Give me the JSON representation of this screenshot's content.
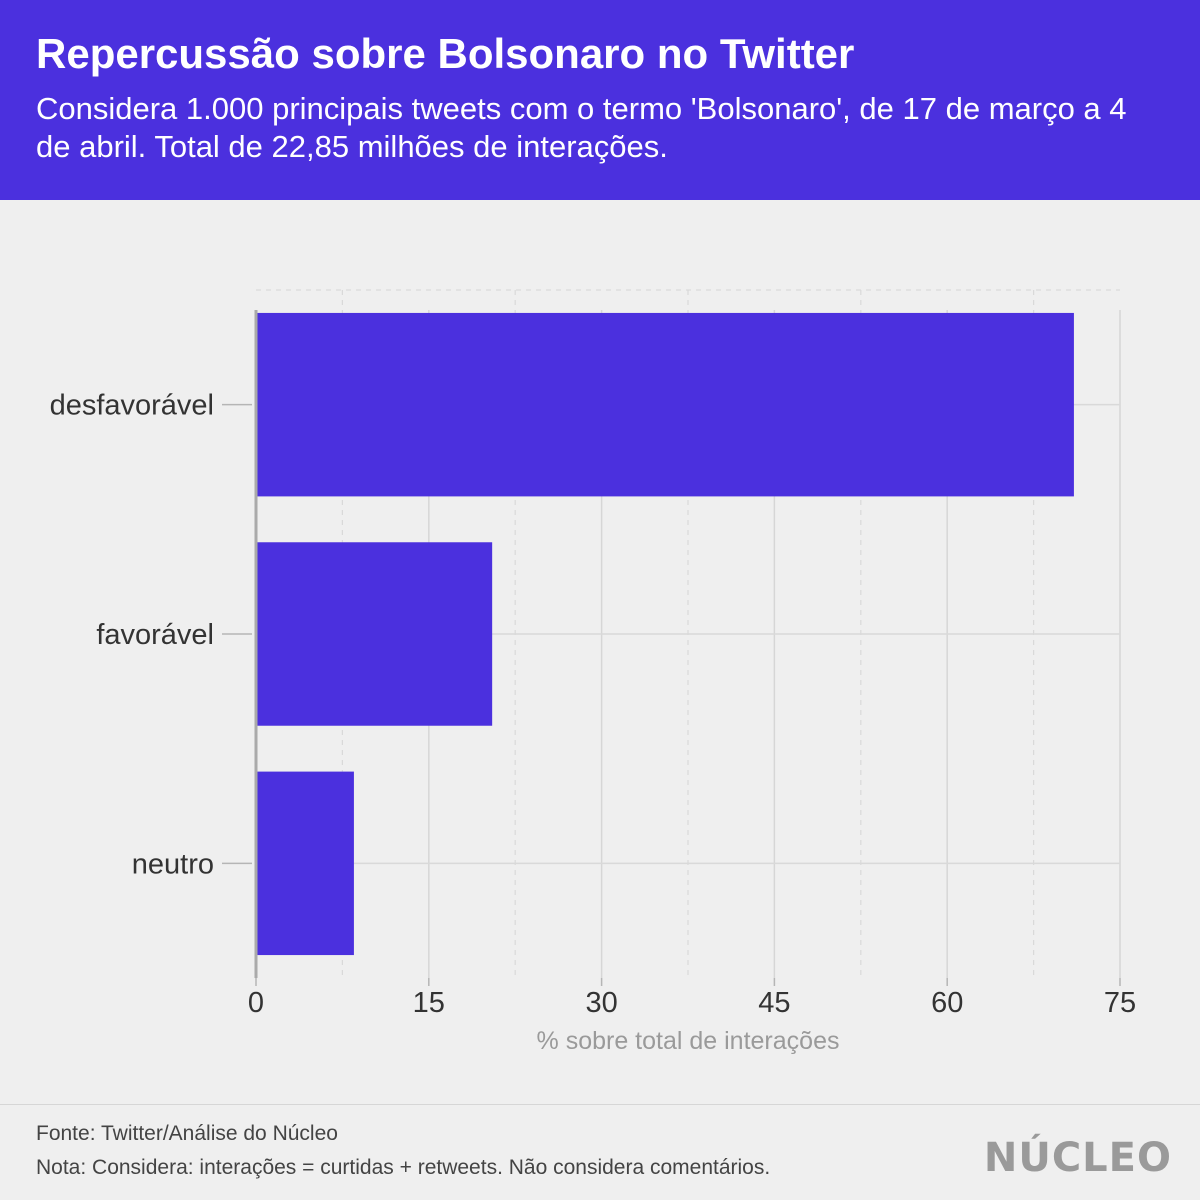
{
  "header": {
    "title": "Repercussão sobre Bolsonaro no Twitter",
    "subtitle": "Considera 1.000 principais tweets com o termo 'Bolsonaro', de 17 de março a 4 de abril. Total de 22,85 milhões de interações."
  },
  "chart_data": {
    "type": "bar",
    "orientation": "horizontal",
    "categories": [
      "desfavorável",
      "favorável",
      "neutro"
    ],
    "values": [
      71,
      20.5,
      8.5
    ],
    "xlabel": "% sobre total de interações",
    "ylabel": "",
    "xlim": [
      0,
      75
    ],
    "xticks": [
      "0",
      "15",
      "30",
      "45",
      "60",
      "75"
    ],
    "grid": true,
    "bar_color": "#4b30de"
  },
  "footer": {
    "source": "Fonte: Twitter/Análise do Núcleo",
    "note": "Nota: Considera: interações = curtidas + retweets. Não considera comentários.",
    "logo": "NÚCLEO"
  },
  "colors": {
    "header_bg": "#4b30de",
    "page_bg": "#efefef",
    "bar": "#4b30de"
  }
}
